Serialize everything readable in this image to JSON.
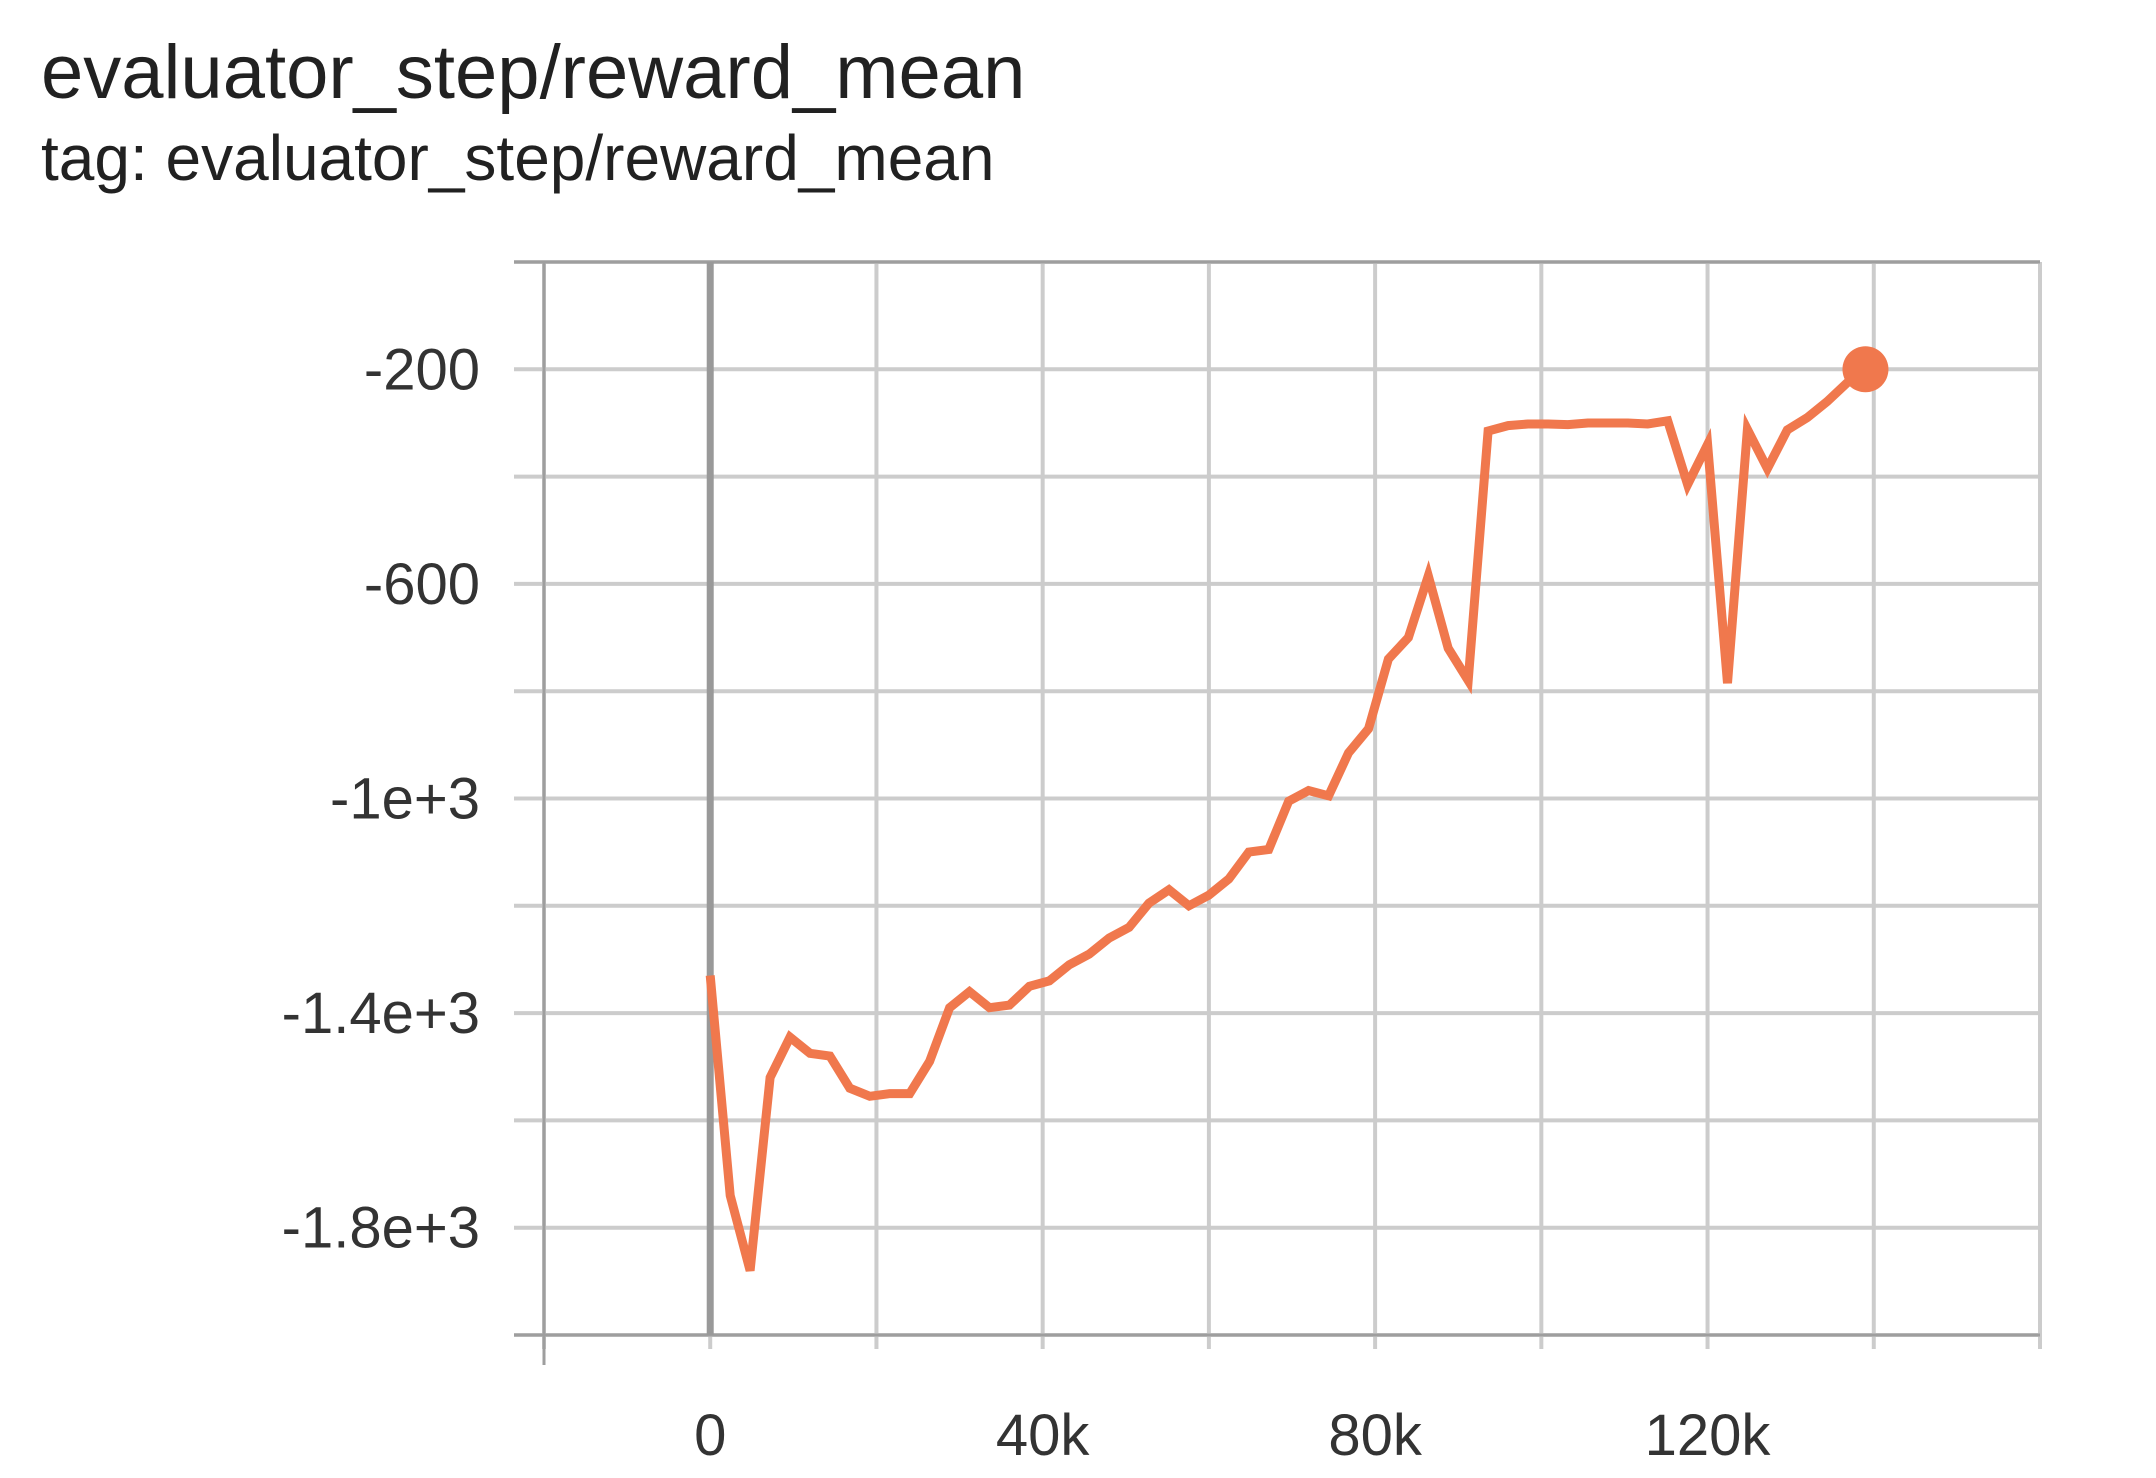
{
  "chart_data": {
    "type": "line",
    "title": "evaluator_step/reward_mean",
    "subtitle": "tag: evaluator_step/reward_mean",
    "xlabel": "",
    "ylabel": "",
    "xlim": [
      -20000,
      160000
    ],
    "ylim": [
      -2000,
      0
    ],
    "x_ticks": [
      0,
      40000,
      80000,
      120000
    ],
    "x_tick_labels": [
      "0",
      "40k",
      "80k",
      "120k"
    ],
    "y_ticks": [
      -200,
      -600,
      -1000,
      -1400,
      -1800
    ],
    "y_tick_labels": [
      "-200",
      "-600",
      "-1e+3",
      "-1.4e+3",
      "-1.8e+3"
    ],
    "grid": true,
    "line_color": "#f0784d",
    "grid_color": "#cccccc",
    "zero_line_color": "#999999",
    "series": [
      {
        "name": "evaluator_step/reward_mean",
        "color": "#f0784d",
        "x": [
          0,
          2400,
          4800,
          7200,
          9600,
          12000,
          14400,
          16800,
          19200,
          21600,
          24000,
          26400,
          28800,
          31200,
          33600,
          36000,
          38400,
          40800,
          43200,
          45600,
          48000,
          50400,
          52800,
          55200,
          57600,
          60000,
          62400,
          64800,
          67200,
          69600,
          72000,
          74400,
          76800,
          79200,
          81600,
          84000,
          86400,
          88800,
          91200,
          93600,
          96000,
          98400,
          100800,
          103200,
          105600,
          108000,
          110400,
          112800,
          115200,
          117600,
          120000,
          122400,
          124800,
          127200,
          129600,
          132000,
          134400,
          136800,
          139000
        ],
        "values": [
          -1330,
          -1740,
          -1880,
          -1520,
          -1445,
          -1475,
          -1480,
          -1540,
          -1555,
          -1550,
          -1550,
          -1490,
          -1390,
          -1360,
          -1390,
          -1385,
          -1350,
          -1340,
          -1310,
          -1290,
          -1260,
          -1240,
          -1195,
          -1170,
          -1200,
          -1180,
          -1150,
          -1100,
          -1095,
          -1005,
          -985,
          -995,
          -915,
          -870,
          -740,
          -700,
          -585,
          -720,
          -780,
          -315,
          -305,
          -302,
          -302,
          -303,
          -300,
          -300,
          -300,
          -302,
          -296,
          -415,
          -340,
          -785,
          -312,
          -385,
          -313,
          -290,
          -260,
          -225,
          -200
        ]
      }
    ]
  }
}
